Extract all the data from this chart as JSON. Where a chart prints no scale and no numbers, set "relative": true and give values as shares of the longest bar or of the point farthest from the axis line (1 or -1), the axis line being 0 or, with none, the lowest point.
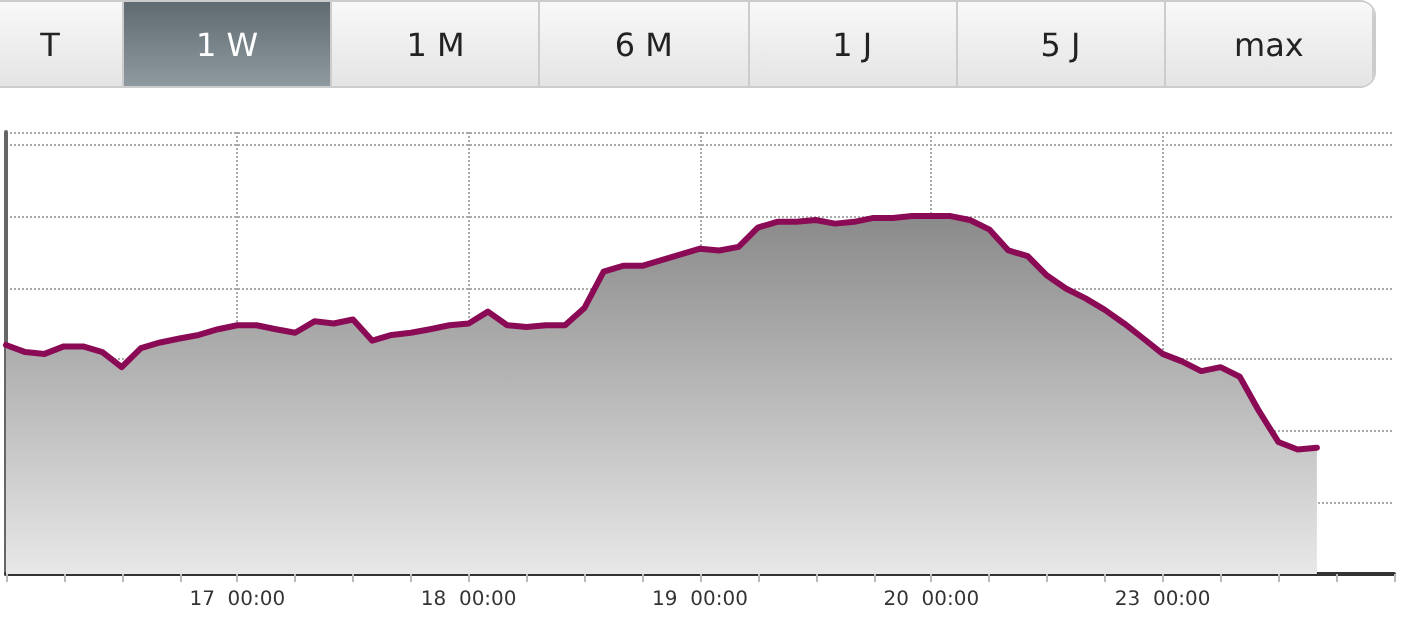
{
  "chart_data": {
    "type": "area",
    "relative": true,
    "annotations": [
      "T",
      "1 W",
      "1 M",
      "6 M",
      "1 J",
      "5 J",
      "max"
    ],
    "categories": [
      null,
      null,
      null,
      null,
      null,
      null,
      null,
      null,
      null,
      null,
      null,
      null,
      "17  00:00",
      null,
      null,
      null,
      null,
      null,
      null,
      null,
      null,
      null,
      null,
      null,
      "18  00:00",
      null,
      null,
      null,
      null,
      null,
      null,
      null,
      null,
      null,
      null,
      null,
      "19  00:00",
      null,
      null,
      null,
      null,
      null,
      null,
      null,
      null,
      null,
      null,
      null,
      "20  00:00",
      null,
      null,
      null,
      null,
      null,
      null,
      null,
      null,
      null,
      null,
      null,
      "23  00:00",
      null,
      null,
      null,
      null,
      null,
      null,
      null,
      null,
      null,
      null,
      null,
      null
    ],
    "series": [
      {
        "color": "#8b0a55",
        "values": [
          0.64,
          0.62,
          0.615,
          0.636,
          0.636,
          0.62,
          0.578,
          0.631,
          0.647,
          0.658,
          0.668,
          0.684,
          0.695,
          0.695,
          0.684,
          0.674,
          0.706,
          0.7,
          0.711,
          0.652,
          0.668,
          0.674,
          0.684,
          0.695,
          0.7,
          0.733,
          0.695,
          0.69,
          0.695,
          0.695,
          0.743,
          0.845,
          0.861,
          0.861,
          0.877,
          0.893,
          0.909,
          0.904,
          0.914,
          0.968,
          0.984,
          0.984,
          0.989,
          0.979,
          0.984,
          0.995,
          0.995,
          1,
          1,
          1,
          0.989,
          0.963,
          0.904,
          0.888,
          0.834,
          0.797,
          0.77,
          0.738,
          0.7,
          0.658,
          0.615,
          0.594,
          0.567,
          0.578,
          0.551,
          0.455,
          0.369,
          0.348,
          0.353,
          null,
          null,
          null,
          null
        ]
      }
    ],
    "grid": true,
    "marker": "none",
    "line_style": "solid"
  }
}
